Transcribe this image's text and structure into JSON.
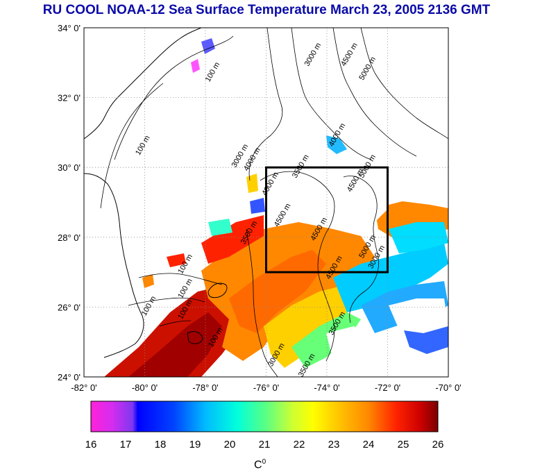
{
  "title": "RU COOL  NOAA-12 Sea Surface Temperature March 23, 2005 2136 GMT",
  "map": {
    "lon_labels": [
      "-82° 0'",
      "-80° 0'",
      "-78° 0'",
      "-76° 0'",
      "-74° 0'",
      "-72° 0'",
      "-70° 0'"
    ],
    "lon_values": [
      -82,
      -80,
      -78,
      -76,
      -74,
      -72,
      -70
    ],
    "lat_labels": [
      "34° 0'",
      "32° 0'",
      "30° 0'",
      "28° 0'",
      "26° 0'",
      "24° 0'"
    ],
    "lat_values": [
      34,
      32,
      30,
      28,
      26,
      24
    ],
    "lon_range": [
      -82,
      -70
    ],
    "lat_range": [
      24,
      34
    ],
    "study_box": {
      "lon": [
        -76,
        -72
      ],
      "lat": [
        27,
        30
      ]
    },
    "contour_labels": [
      {
        "text": "100 m",
        "lon": -77.7,
        "lat": 32.7
      },
      {
        "text": "100 m",
        "lon": -80.0,
        "lat": 30.6
      },
      {
        "text": "3000 m",
        "lon": -74.4,
        "lat": 33.2
      },
      {
        "text": "4500 m",
        "lon": -73.2,
        "lat": 33.2
      },
      {
        "text": "5000 m",
        "lon": -72.6,
        "lat": 32.8
      },
      {
        "text": "4000 m",
        "lon": -73.6,
        "lat": 30.9
      },
      {
        "text": "3000 m",
        "lon": -76.8,
        "lat": 30.3
      },
      {
        "text": "4000 m",
        "lon": -76.4,
        "lat": 30.2
      },
      {
        "text": "3500 m",
        "lon": -74.8,
        "lat": 30.0
      },
      {
        "text": "5000 m",
        "lon": -72.6,
        "lat": 30.0
      },
      {
        "text": "4500 m",
        "lon": -73.0,
        "lat": 29.6
      },
      {
        "text": "4000 m",
        "lon": -75.8,
        "lat": 29.5
      },
      {
        "text": "4500 m",
        "lon": -75.4,
        "lat": 28.6
      },
      {
        "text": "4500 m",
        "lon": -74.2,
        "lat": 28.2
      },
      {
        "text": "3500 m",
        "lon": -76.5,
        "lat": 28.1
      },
      {
        "text": "5000 m",
        "lon": -72.6,
        "lat": 27.7
      },
      {
        "text": "3000 m",
        "lon": -72.3,
        "lat": 27.4
      },
      {
        "text": "4500 m",
        "lon": -73.7,
        "lat": 27.1
      },
      {
        "text": "100 m",
        "lon": -78.6,
        "lat": 27.2
      },
      {
        "text": "100 m",
        "lon": -78.6,
        "lat": 26.5
      },
      {
        "text": "100 m",
        "lon": -79.8,
        "lat": 26.0
      },
      {
        "text": "100 m",
        "lon": -78.6,
        "lat": 25.9
      },
      {
        "text": "3500 m",
        "lon": -73.6,
        "lat": 25.5
      },
      {
        "text": "100 m",
        "lon": -77.6,
        "lat": 25.1
      },
      {
        "text": "3000 m",
        "lon": -75.6,
        "lat": 24.6
      },
      {
        "text": "3500 m",
        "lon": -74.6,
        "lat": 24.3
      }
    ]
  },
  "colorbar": {
    "ticks": [
      "16",
      "17",
      "18",
      "19",
      "20",
      "21",
      "22",
      "23",
      "24",
      "25",
      "26"
    ],
    "min": 16,
    "max": 26,
    "unit_base": "C",
    "unit_sup": "0"
  }
}
